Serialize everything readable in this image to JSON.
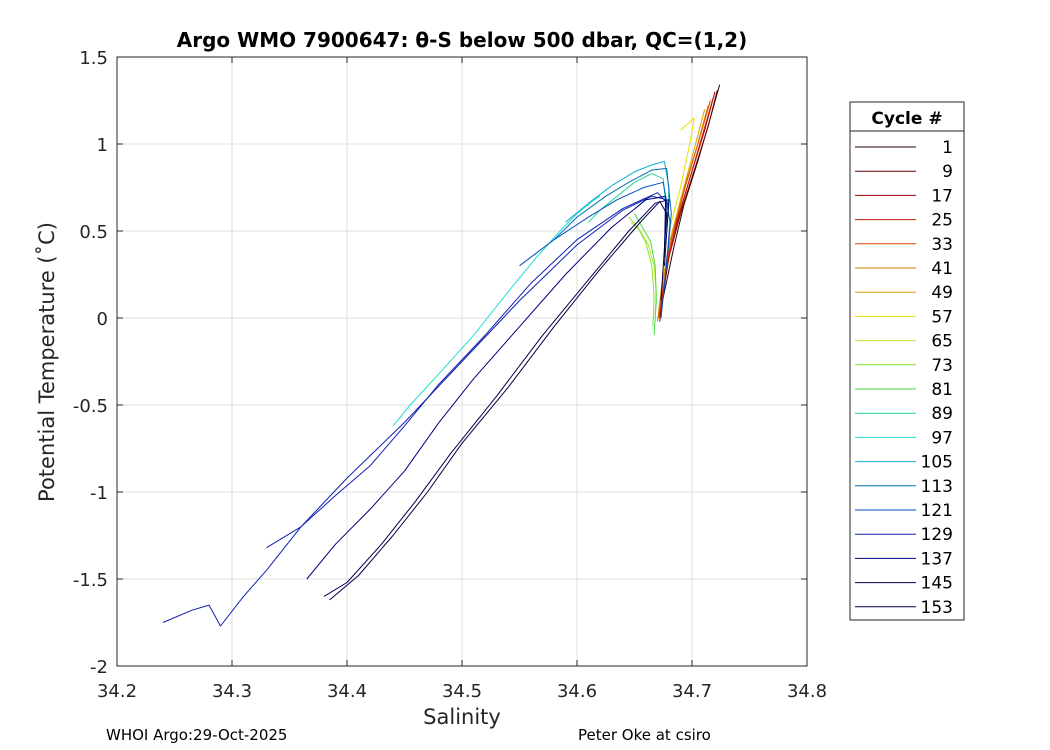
{
  "chart_data": {
    "type": "line",
    "title": "Argo WMO 7900647: θ-S below 500 dbar,  QC=(1,2)",
    "xlabel": "Salinity",
    "ylabel": "Potential Temperature (˚C)",
    "xlim": [
      34.2,
      34.8
    ],
    "ylim": [
      -2,
      1.5
    ],
    "xticks": [
      34.2,
      34.3,
      34.4,
      34.5,
      34.6,
      34.7,
      34.8
    ],
    "xtick_labels": [
      "34.2",
      "34.3",
      "34.4",
      "34.5",
      "34.6",
      "34.7",
      "34.8"
    ],
    "yticks": [
      -2,
      -1.5,
      -1,
      -0.5,
      0,
      0.5,
      1,
      1.5
    ],
    "ytick_labels": [
      "-2",
      "-1.5",
      "-1",
      "-0.5",
      "0",
      "0.5",
      "1",
      "1.5"
    ],
    "grid": true,
    "legend": {
      "title": "Cycle #",
      "placement": "right, outside plot",
      "entries": [
        {
          "label": "1",
          "color": "#2a0000"
        },
        {
          "label": "9",
          "color": "#6a0000"
        },
        {
          "label": "17",
          "color": "#a00000"
        },
        {
          "label": "25",
          "color": "#cc1a00"
        },
        {
          "label": "33",
          "color": "#d84000"
        },
        {
          "label": "41",
          "color": "#d07a00"
        },
        {
          "label": "49",
          "color": "#e0a000"
        },
        {
          "label": "57",
          "color": "#e8e000"
        },
        {
          "label": "65",
          "color": "#c0e020"
        },
        {
          "label": "73",
          "color": "#88e030"
        },
        {
          "label": "81",
          "color": "#40e040"
        },
        {
          "label": "89",
          "color": "#20d890"
        },
        {
          "label": "97",
          "color": "#20e0d0"
        },
        {
          "label": "105",
          "color": "#10b0d0"
        },
        {
          "label": "113",
          "color": "#0070b0"
        },
        {
          "label": "121",
          "color": "#0050c0"
        },
        {
          "label": "129",
          "color": "#1020b0"
        },
        {
          "label": "137",
          "color": "#000080"
        },
        {
          "label": "145",
          "color": "#000050"
        },
        {
          "label": "153",
          "color": "#000040"
        }
      ]
    },
    "series": [
      {
        "color": "#2a0000",
        "x": [
          34.724,
          34.716,
          34.705,
          34.693,
          34.684,
          34.676,
          34.671
        ],
        "y": [
          1.34,
          1.15,
          0.9,
          0.65,
          0.4,
          0.15,
          0.0
        ]
      },
      {
        "color": "#6a0000",
        "x": [
          34.722,
          34.714,
          34.702,
          34.69,
          34.68,
          34.674,
          34.672
        ],
        "y": [
          1.31,
          1.1,
          0.85,
          0.6,
          0.35,
          0.1,
          -0.02
        ]
      },
      {
        "color": "#a00000",
        "x": [
          34.72,
          34.711,
          34.699,
          34.687,
          34.678,
          34.673
        ],
        "y": [
          1.3,
          1.08,
          0.82,
          0.56,
          0.3,
          0.05
        ]
      },
      {
        "color": "#cc1a00",
        "x": [
          34.719,
          34.709,
          34.697,
          34.686,
          34.677,
          34.672
        ],
        "y": [
          1.28,
          1.05,
          0.78,
          0.52,
          0.26,
          0.02
        ]
      },
      {
        "color": "#d84000",
        "x": [
          34.716,
          34.706,
          34.694,
          34.683,
          34.675,
          34.671
        ],
        "y": [
          1.25,
          1.02,
          0.75,
          0.48,
          0.22,
          0.0
        ]
      },
      {
        "color": "#d07a00",
        "x": [
          34.714,
          34.704,
          34.692,
          34.681,
          34.674,
          34.67
        ],
        "y": [
          1.22,
          0.98,
          0.72,
          0.45,
          0.2,
          -0.02
        ]
      },
      {
        "color": "#e0a000",
        "x": [
          34.711,
          34.701,
          34.69,
          34.68,
          34.673
        ],
        "y": [
          1.2,
          0.95,
          0.68,
          0.42,
          0.15
        ]
      },
      {
        "color": "#e8e000",
        "x": [
          34.69,
          34.697,
          34.702,
          34.698,
          34.69,
          34.68
        ],
        "y": [
          1.08,
          1.12,
          1.15,
          1.0,
          0.75,
          0.5
        ]
      },
      {
        "color": "#c0e020",
        "x": [
          34.647,
          34.655,
          34.662,
          34.667,
          34.669,
          34.668
        ],
        "y": [
          0.55,
          0.5,
          0.42,
          0.3,
          0.15,
          0.02
        ]
      },
      {
        "color": "#88e030",
        "x": [
          34.645,
          34.653,
          34.66,
          34.665,
          34.667,
          34.666
        ],
        "y": [
          0.58,
          0.52,
          0.43,
          0.3,
          0.12,
          -0.05
        ]
      },
      {
        "color": "#40e040",
        "x": [
          34.65,
          34.657,
          34.664,
          34.668,
          34.669,
          34.667
        ],
        "y": [
          0.6,
          0.52,
          0.44,
          0.3,
          0.1,
          -0.1
        ]
      },
      {
        "color": "#20d890",
        "x": [
          34.61,
          34.62,
          34.635,
          34.65,
          34.665,
          34.675,
          34.678
        ],
        "y": [
          0.55,
          0.62,
          0.7,
          0.78,
          0.83,
          0.8,
          0.6
        ]
      },
      {
        "color": "#20e0d0",
        "x": [
          34.44,
          34.455,
          34.48,
          34.51,
          34.54,
          34.565,
          34.588,
          34.6,
          34.615,
          34.62
        ],
        "y": [
          -0.62,
          -0.5,
          -0.32,
          -0.1,
          0.15,
          0.35,
          0.52,
          0.6,
          0.68,
          0.7
        ]
      },
      {
        "color": "#10b0d0",
        "x": [
          34.59,
          34.61,
          34.63,
          34.65,
          34.665,
          34.676,
          34.68,
          34.678
        ],
        "y": [
          0.55,
          0.66,
          0.76,
          0.84,
          0.88,
          0.9,
          0.75,
          0.5
        ]
      },
      {
        "color": "#0070b0",
        "x": [
          34.58,
          34.6,
          34.625,
          34.645,
          34.665,
          34.678,
          34.682,
          34.678
        ],
        "y": [
          0.45,
          0.58,
          0.7,
          0.78,
          0.85,
          0.86,
          0.6,
          0.3
        ]
      },
      {
        "color": "#0050c0",
        "x": [
          34.55,
          34.58,
          34.61,
          34.635,
          34.658,
          34.675,
          34.681,
          34.677,
          34.673
        ],
        "y": [
          0.3,
          0.45,
          0.58,
          0.68,
          0.75,
          0.78,
          0.55,
          0.25,
          0.0
        ]
      },
      {
        "color": "#1020b0",
        "x": [
          34.24,
          34.265,
          34.28,
          34.29,
          34.31,
          34.33,
          34.36,
          34.4,
          34.45,
          34.5,
          34.55,
          34.6,
          34.64,
          34.665,
          34.678,
          34.676
        ],
        "y": [
          -1.75,
          -1.68,
          -1.65,
          -1.77,
          -1.6,
          -1.45,
          -1.2,
          -0.92,
          -0.6,
          -0.25,
          0.1,
          0.42,
          0.62,
          0.7,
          0.68,
          0.4
        ]
      },
      {
        "color": "#1020b0",
        "x": [
          34.33,
          34.36,
          34.39,
          34.42,
          34.45,
          34.48,
          34.52,
          34.56,
          34.6,
          34.64,
          34.67,
          34.68
        ],
        "y": [
          -1.32,
          -1.2,
          -1.02,
          -0.85,
          -0.62,
          -0.38,
          -0.1,
          0.2,
          0.45,
          0.63,
          0.72,
          0.65
        ]
      },
      {
        "color": "#000080",
        "x": [
          34.365,
          34.39,
          34.42,
          34.45,
          34.48,
          34.51,
          34.55,
          34.59,
          34.63,
          34.66,
          34.677,
          34.676
        ],
        "y": [
          -1.5,
          -1.3,
          -1.1,
          -0.88,
          -0.6,
          -0.35,
          -0.05,
          0.25,
          0.52,
          0.68,
          0.7,
          0.35
        ]
      },
      {
        "color": "#000050",
        "x": [
          34.38,
          34.4,
          34.43,
          34.46,
          34.49,
          34.53,
          34.57,
          34.61,
          34.645,
          34.668,
          34.68,
          34.676
        ],
        "y": [
          -1.6,
          -1.52,
          -1.3,
          -1.05,
          -0.78,
          -0.45,
          -0.1,
          0.22,
          0.5,
          0.66,
          0.68,
          0.3
        ]
      },
      {
        "color": "#000040",
        "x": [
          34.385,
          34.41,
          34.44,
          34.47,
          34.5,
          34.54,
          34.58,
          34.62,
          34.655,
          34.672,
          34.678,
          34.673
        ],
        "y": [
          -1.62,
          -1.48,
          -1.25,
          -1.0,
          -0.72,
          -0.4,
          -0.05,
          0.28,
          0.55,
          0.67,
          0.6,
          0.1
        ]
      }
    ]
  },
  "footer": {
    "left": "WHOI Argo:29-Oct-2025",
    "right": "Peter Oke at csiro"
  }
}
